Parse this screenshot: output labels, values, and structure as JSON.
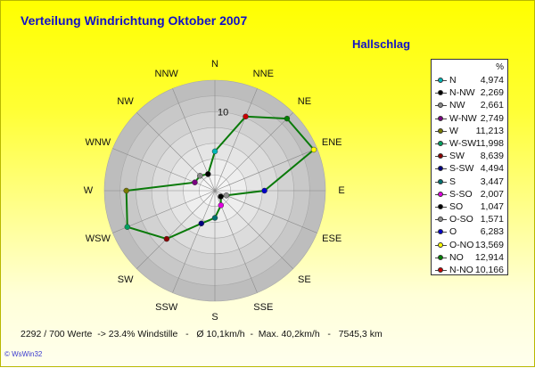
{
  "title": "Verteilung Windrichtung    Oktober 2007",
  "station": "Hallschlag",
  "footer": "2292 / 700 Werte  -> 23.4% Windstille   -   Ø 10,1km/h  -  Max. 40,2km/h   -   7545,3 km",
  "copyright": "© WsWin32",
  "chart_data": {
    "type": "radar",
    "directions": [
      "N",
      "NNE",
      "NE",
      "ENE",
      "E",
      "ESE",
      "SE",
      "SSE",
      "S",
      "SSW",
      "SW",
      "WSW",
      "W",
      "WNW",
      "NW",
      "NNW"
    ],
    "values": [
      4.974,
      10.166,
      12.914,
      13.569,
      6.283,
      1.571,
      1.047,
      2.007,
      3.447,
      4.494,
      8.639,
      11.998,
      11.213,
      2.749,
      2.661,
      2.269
    ],
    "rmax": 14,
    "radial_tick_label": "10",
    "series_color": "#0a7a0a",
    "legend_header": "%",
    "legend": [
      {
        "name": "N",
        "value": "4,974",
        "color": "#00b8b8"
      },
      {
        "name": "N-NW",
        "value": "2,269",
        "color": "#000000"
      },
      {
        "name": "NW",
        "value": "2,661",
        "color": "#888888"
      },
      {
        "name": "W-NW",
        "value": "2,749",
        "color": "#7a0080"
      },
      {
        "name": "W",
        "value": "11,213",
        "color": "#7a7a00"
      },
      {
        "name": "W-SW",
        "value": "11,998",
        "color": "#00a060"
      },
      {
        "name": "SW",
        "value": "8,639",
        "color": "#8a0000"
      },
      {
        "name": "S-SW",
        "value": "4,494",
        "color": "#000080"
      },
      {
        "name": "S",
        "value": "3,447",
        "color": "#007070"
      },
      {
        "name": "S-SO",
        "value": "2,007",
        "color": "#e000e0"
      },
      {
        "name": "SO",
        "value": "1,047",
        "color": "#000000"
      },
      {
        "name": "O-SO",
        "value": "1,571",
        "color": "#909090"
      },
      {
        "name": "O",
        "value": "6,283",
        "color": "#0000c8"
      },
      {
        "name": "O-NO",
        "value": "13,569",
        "color": "#ffff00"
      },
      {
        "name": "NO",
        "value": "12,914",
        "color": "#008000"
      },
      {
        "name": "N-NO",
        "value": "10,166",
        "color": "#c80000"
      }
    ],
    "marker_colors": [
      "#00b8b8",
      "#c80000",
      "#008000",
      "#ffff00",
      "#0000c8",
      "#909090",
      "#000000",
      "#e000e0",
      "#007070",
      "#000080",
      "#8a0000",
      "#00a060",
      "#7a7a00",
      "#7a0080",
      "#888888",
      "#000000"
    ]
  }
}
